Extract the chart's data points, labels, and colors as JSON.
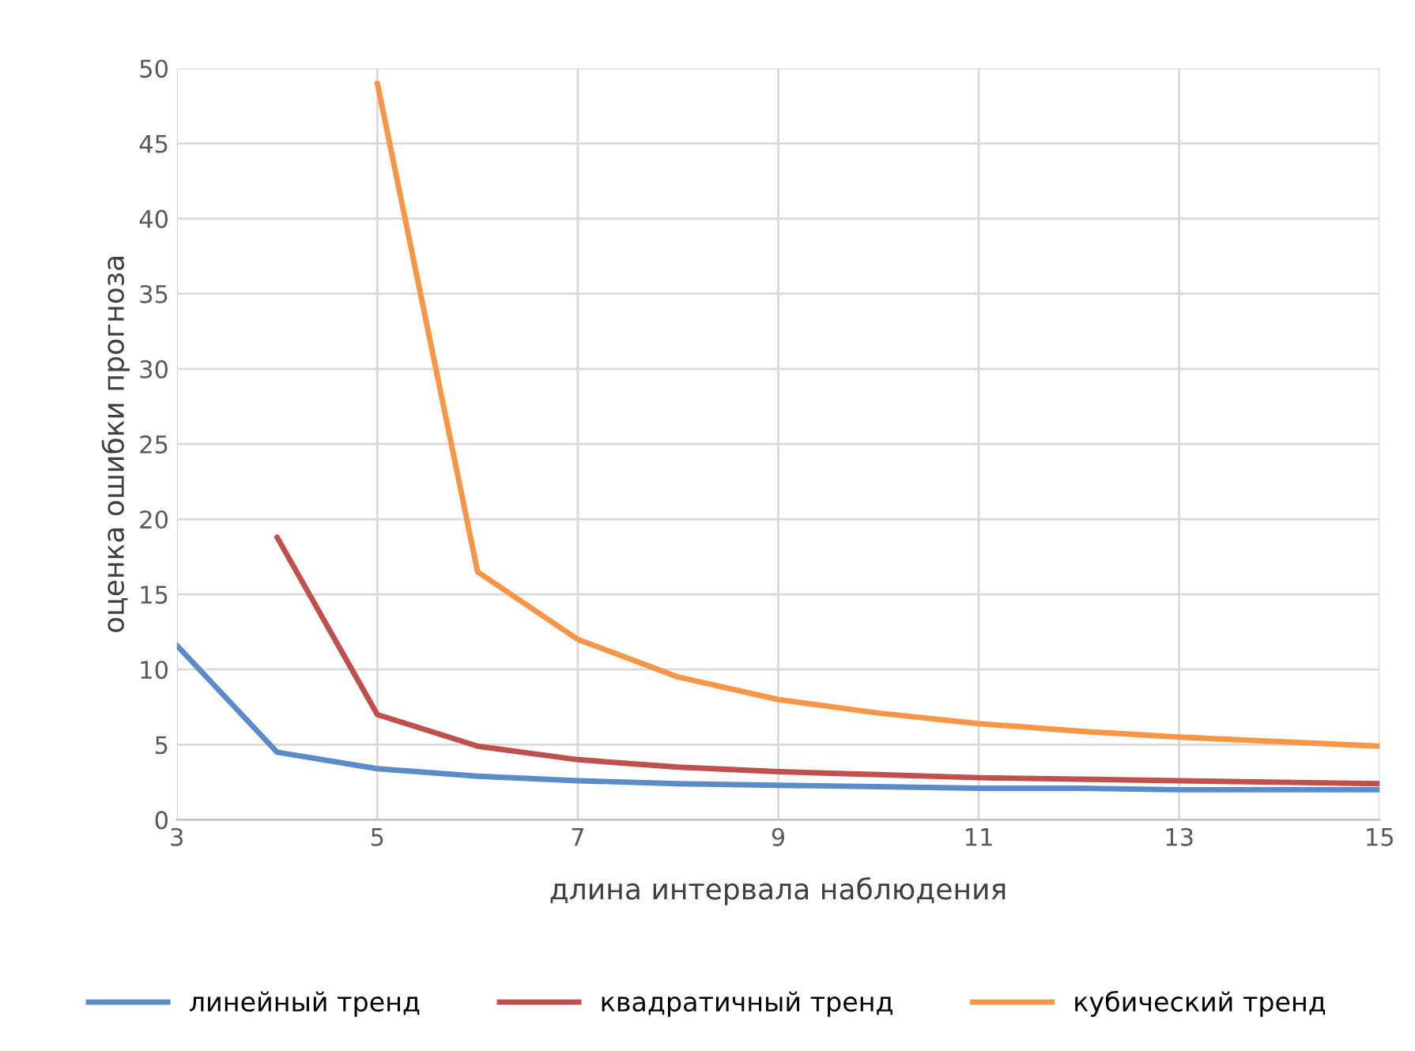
{
  "chart_data": {
    "type": "line",
    "xlabel": "длина интервала наблюдения",
    "ylabel": "оценка ошибки прогноза",
    "xlim": [
      3,
      15
    ],
    "xticks": [
      3,
      5,
      7,
      9,
      11,
      13,
      15
    ],
    "ylim": [
      0,
      50
    ],
    "yticks": [
      0,
      5,
      10,
      15,
      20,
      25,
      30,
      35,
      40,
      45,
      50
    ],
    "grid": true,
    "legend": "bottom",
    "marker": "none",
    "line_style": "solid",
    "series": [
      {
        "name": "линейный тренд",
        "color": "#5b8bc9",
        "x": [
          3,
          4,
          5,
          6,
          7,
          8,
          9,
          10,
          11,
          12,
          13,
          14,
          15
        ],
        "values": [
          11.6,
          4.5,
          3.4,
          2.9,
          2.6,
          2.4,
          2.3,
          2.2,
          2.1,
          2.1,
          2.0,
          2.0,
          2.0
        ]
      },
      {
        "name": "квадратичный тренд",
        "color": "#c0504d",
        "x": [
          4,
          5,
          6,
          7,
          8,
          9,
          10,
          11,
          12,
          13,
          14,
          15
        ],
        "values": [
          18.8,
          7.0,
          4.9,
          4.0,
          3.5,
          3.2,
          3.0,
          2.8,
          2.7,
          2.6,
          2.5,
          2.4
        ]
      },
      {
        "name": "кубический тренд",
        "color": "#f79646",
        "x": [
          5,
          6,
          7,
          8,
          9,
          10,
          11,
          12,
          13,
          14,
          15
        ],
        "values": [
          49.0,
          16.5,
          12.0,
          9.5,
          8.0,
          7.1,
          6.4,
          5.9,
          5.5,
          5.2,
          4.9
        ]
      }
    ]
  }
}
